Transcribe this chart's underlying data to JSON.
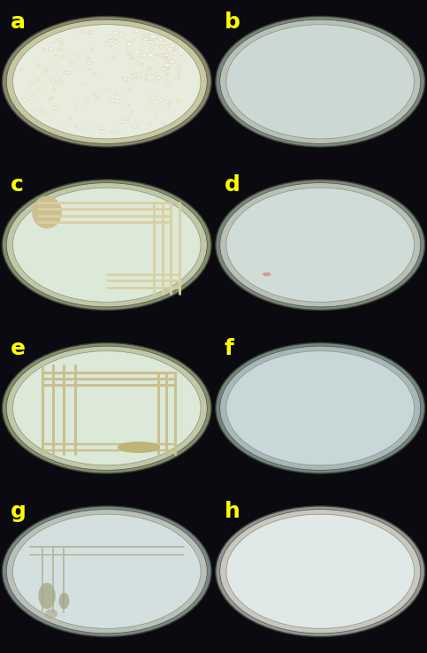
{
  "labels": [
    "a",
    "b",
    "c",
    "d",
    "e",
    "f",
    "g",
    "h"
  ],
  "label_color": "#FFFF00",
  "label_fontsize": 18,
  "label_fontweight": "bold",
  "grid_rows": 4,
  "grid_cols": 2,
  "fig_width": 4.83,
  "fig_height": 7.38,
  "dpi": 100,
  "panel_bg_colors": [
    "#0a0a0a",
    "#1a4a7a",
    "#1a4a7a",
    "#1a4a7a",
    "#0d0d0d",
    "#1a4a7a",
    "#1a4a7a",
    "#1a4a7a"
  ],
  "plate_outer_colors": [
    "#c8c8a0",
    "#b8c0b8",
    "#c0c8a8",
    "#b8c0b8",
    "#c0c8a8",
    "#a8b8b8",
    "#b8c0b8",
    "#c8c8c0"
  ],
  "plate_inner_colors": [
    "#e8ecdc",
    "#ccd8d4",
    "#dce8d8",
    "#d0dcd8",
    "#dce8d8",
    "#c8d8d8",
    "#d4e0e0",
    "#e0e8e8"
  ],
  "plate_rim_colors": [
    "#888870",
    "#788880",
    "#809070",
    "#788880",
    "#809070",
    "#708880",
    "#788888",
    "#909898"
  ]
}
